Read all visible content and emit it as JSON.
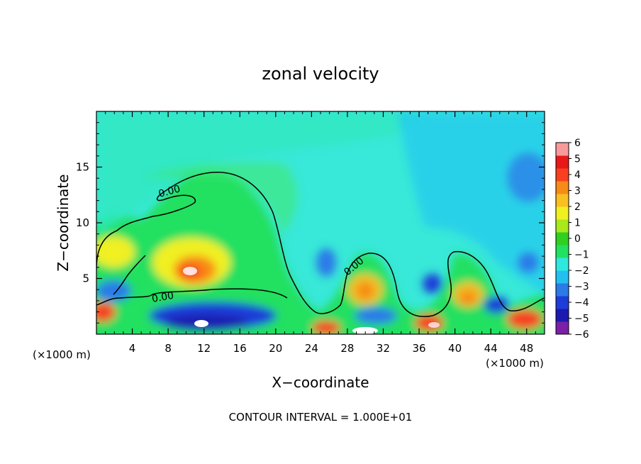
{
  "chart_data": {
    "type": "heatmap",
    "title": "zonal velocity",
    "xlabel": "X−coordinate",
    "ylabel": "Z−coordinate",
    "x_unit_left": "(×1000 m)",
    "x_unit_right": "(×1000 m)",
    "xlim": [
      0,
      50
    ],
    "ylim": [
      0,
      20
    ],
    "xticks": [
      4,
      8,
      12,
      16,
      20,
      24,
      28,
      32,
      36,
      40,
      44,
      48
    ],
    "yticks": [
      5,
      10,
      15
    ],
    "colorbar": {
      "min": -6,
      "max": 6,
      "ticks": [
        6,
        5,
        4,
        3,
        2,
        1,
        0,
        -1,
        -2,
        -3,
        -4,
        -5,
        -6
      ],
      "colors": [
        "#7b1fa8",
        "#1a1ab0",
        "#1e3cd8",
        "#2a7ae8",
        "#22c0f0",
        "#2ee8e0",
        "#22e060",
        "#30d020",
        "#a8e81c",
        "#f0f020",
        "#f8c020",
        "#f88a18",
        "#f84020",
        "#e81818",
        "#f89a9a"
      ]
    },
    "contour_label": "0.00",
    "footer": "CONTOUR INTERVAL = 1.000E+01",
    "field_features": [
      {
        "x": 10.5,
        "z": 5.5,
        "value": 5,
        "rx": 3,
        "rz": 2
      },
      {
        "x": 2,
        "z": 7.5,
        "value": 2,
        "rx": 3.5,
        "rz": 2.5
      },
      {
        "x": 30,
        "z": 4,
        "value": 2.5,
        "rx": 2,
        "rz": 2
      },
      {
        "x": 41,
        "z": 3.5,
        "value": 3,
        "rx": 2,
        "rz": 1.5
      },
      {
        "x": 11,
        "z": 1,
        "value": -4.5,
        "rx": 5,
        "rz": 1.2
      },
      {
        "x": 25,
        "z": 6,
        "value": -3,
        "rx": 1.5,
        "rz": 1.5
      },
      {
        "x": 37,
        "z": 4,
        "value": -3,
        "rx": 1.5,
        "rz": 1.5
      },
      {
        "x": 47,
        "z": 14,
        "value": -2.5,
        "rx": 3,
        "rz": 3
      },
      {
        "x": 1,
        "z": 2,
        "value": 4,
        "rx": 1.5,
        "rz": 1.2
      },
      {
        "x": 38,
        "z": 1,
        "value": 4,
        "rx": 2,
        "rz": 1
      }
    ]
  }
}
